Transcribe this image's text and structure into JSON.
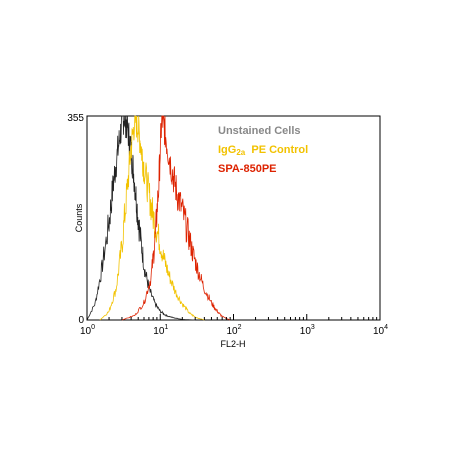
{
  "chart_data": {
    "type": "line",
    "xlabel": "FL2-H",
    "ylabel": "Counts",
    "x_scale": "log",
    "xlim": [
      1,
      10000
    ],
    "ylim": [
      0,
      355
    ],
    "y_top_label": "355",
    "y_bottom_label": "0",
    "x_tick_labels": [
      {
        "base": "10",
        "exp": "0",
        "value": 1
      },
      {
        "base": "10",
        "exp": "1",
        "value": 10
      },
      {
        "base": "10",
        "exp": "2",
        "value": 100
      },
      {
        "base": "10",
        "exp": "3",
        "value": 1000
      },
      {
        "base": "10",
        "exp": "4",
        "value": 10000
      }
    ],
    "grid": false,
    "legend_placement": "top-right",
    "series": [
      {
        "name": "Unstained Cells",
        "color": "#888888",
        "line_color": "#222222",
        "x": [
          1.0,
          1.3,
          1.6,
          2.0,
          2.3,
          2.6,
          2.9,
          3.2,
          3.5,
          3.9,
          4.3,
          4.8,
          5.4,
          6.2,
          7.2,
          8.5,
          10,
          12,
          15,
          20,
          30
        ],
        "y": [
          0,
          30,
          90,
          170,
          240,
          290,
          330,
          355,
          340,
          305,
          260,
          200,
          140,
          85,
          50,
          28,
          15,
          8,
          4,
          1,
          0
        ]
      },
      {
        "name": "IgG2a PE Control",
        "name_base": "IgG",
        "name_sub": "2a",
        "name_rest": "  PE Control",
        "color": "#f2c200",
        "line_color": "#f2c200",
        "x": [
          1.5,
          2.0,
          2.5,
          3.0,
          3.5,
          4.0,
          4.5,
          5.0,
          5.5,
          6.0,
          7.0,
          8.0,
          9.5,
          11,
          13,
          16,
          20,
          25,
          30,
          40
        ],
        "y": [
          0,
          15,
          55,
          130,
          220,
          300,
          350,
          335,
          300,
          265,
          220,
          180,
          145,
          110,
          80,
          50,
          28,
          12,
          5,
          0
        ]
      },
      {
        "name": "SPA-850PE",
        "color": "#dd2200",
        "line_color": "#dd2200",
        "x": [
          3.0,
          4.5,
          6.0,
          7.5,
          8.5,
          9.5,
          10.5,
          11.5,
          13,
          15,
          17,
          20,
          24,
          28,
          33,
          40,
          50,
          60,
          70,
          90
        ],
        "y": [
          0,
          8,
          30,
          75,
          140,
          230,
          355,
          330,
          290,
          250,
          220,
          190,
          150,
          115,
          85,
          55,
          30,
          15,
          6,
          0
        ]
      }
    ]
  }
}
